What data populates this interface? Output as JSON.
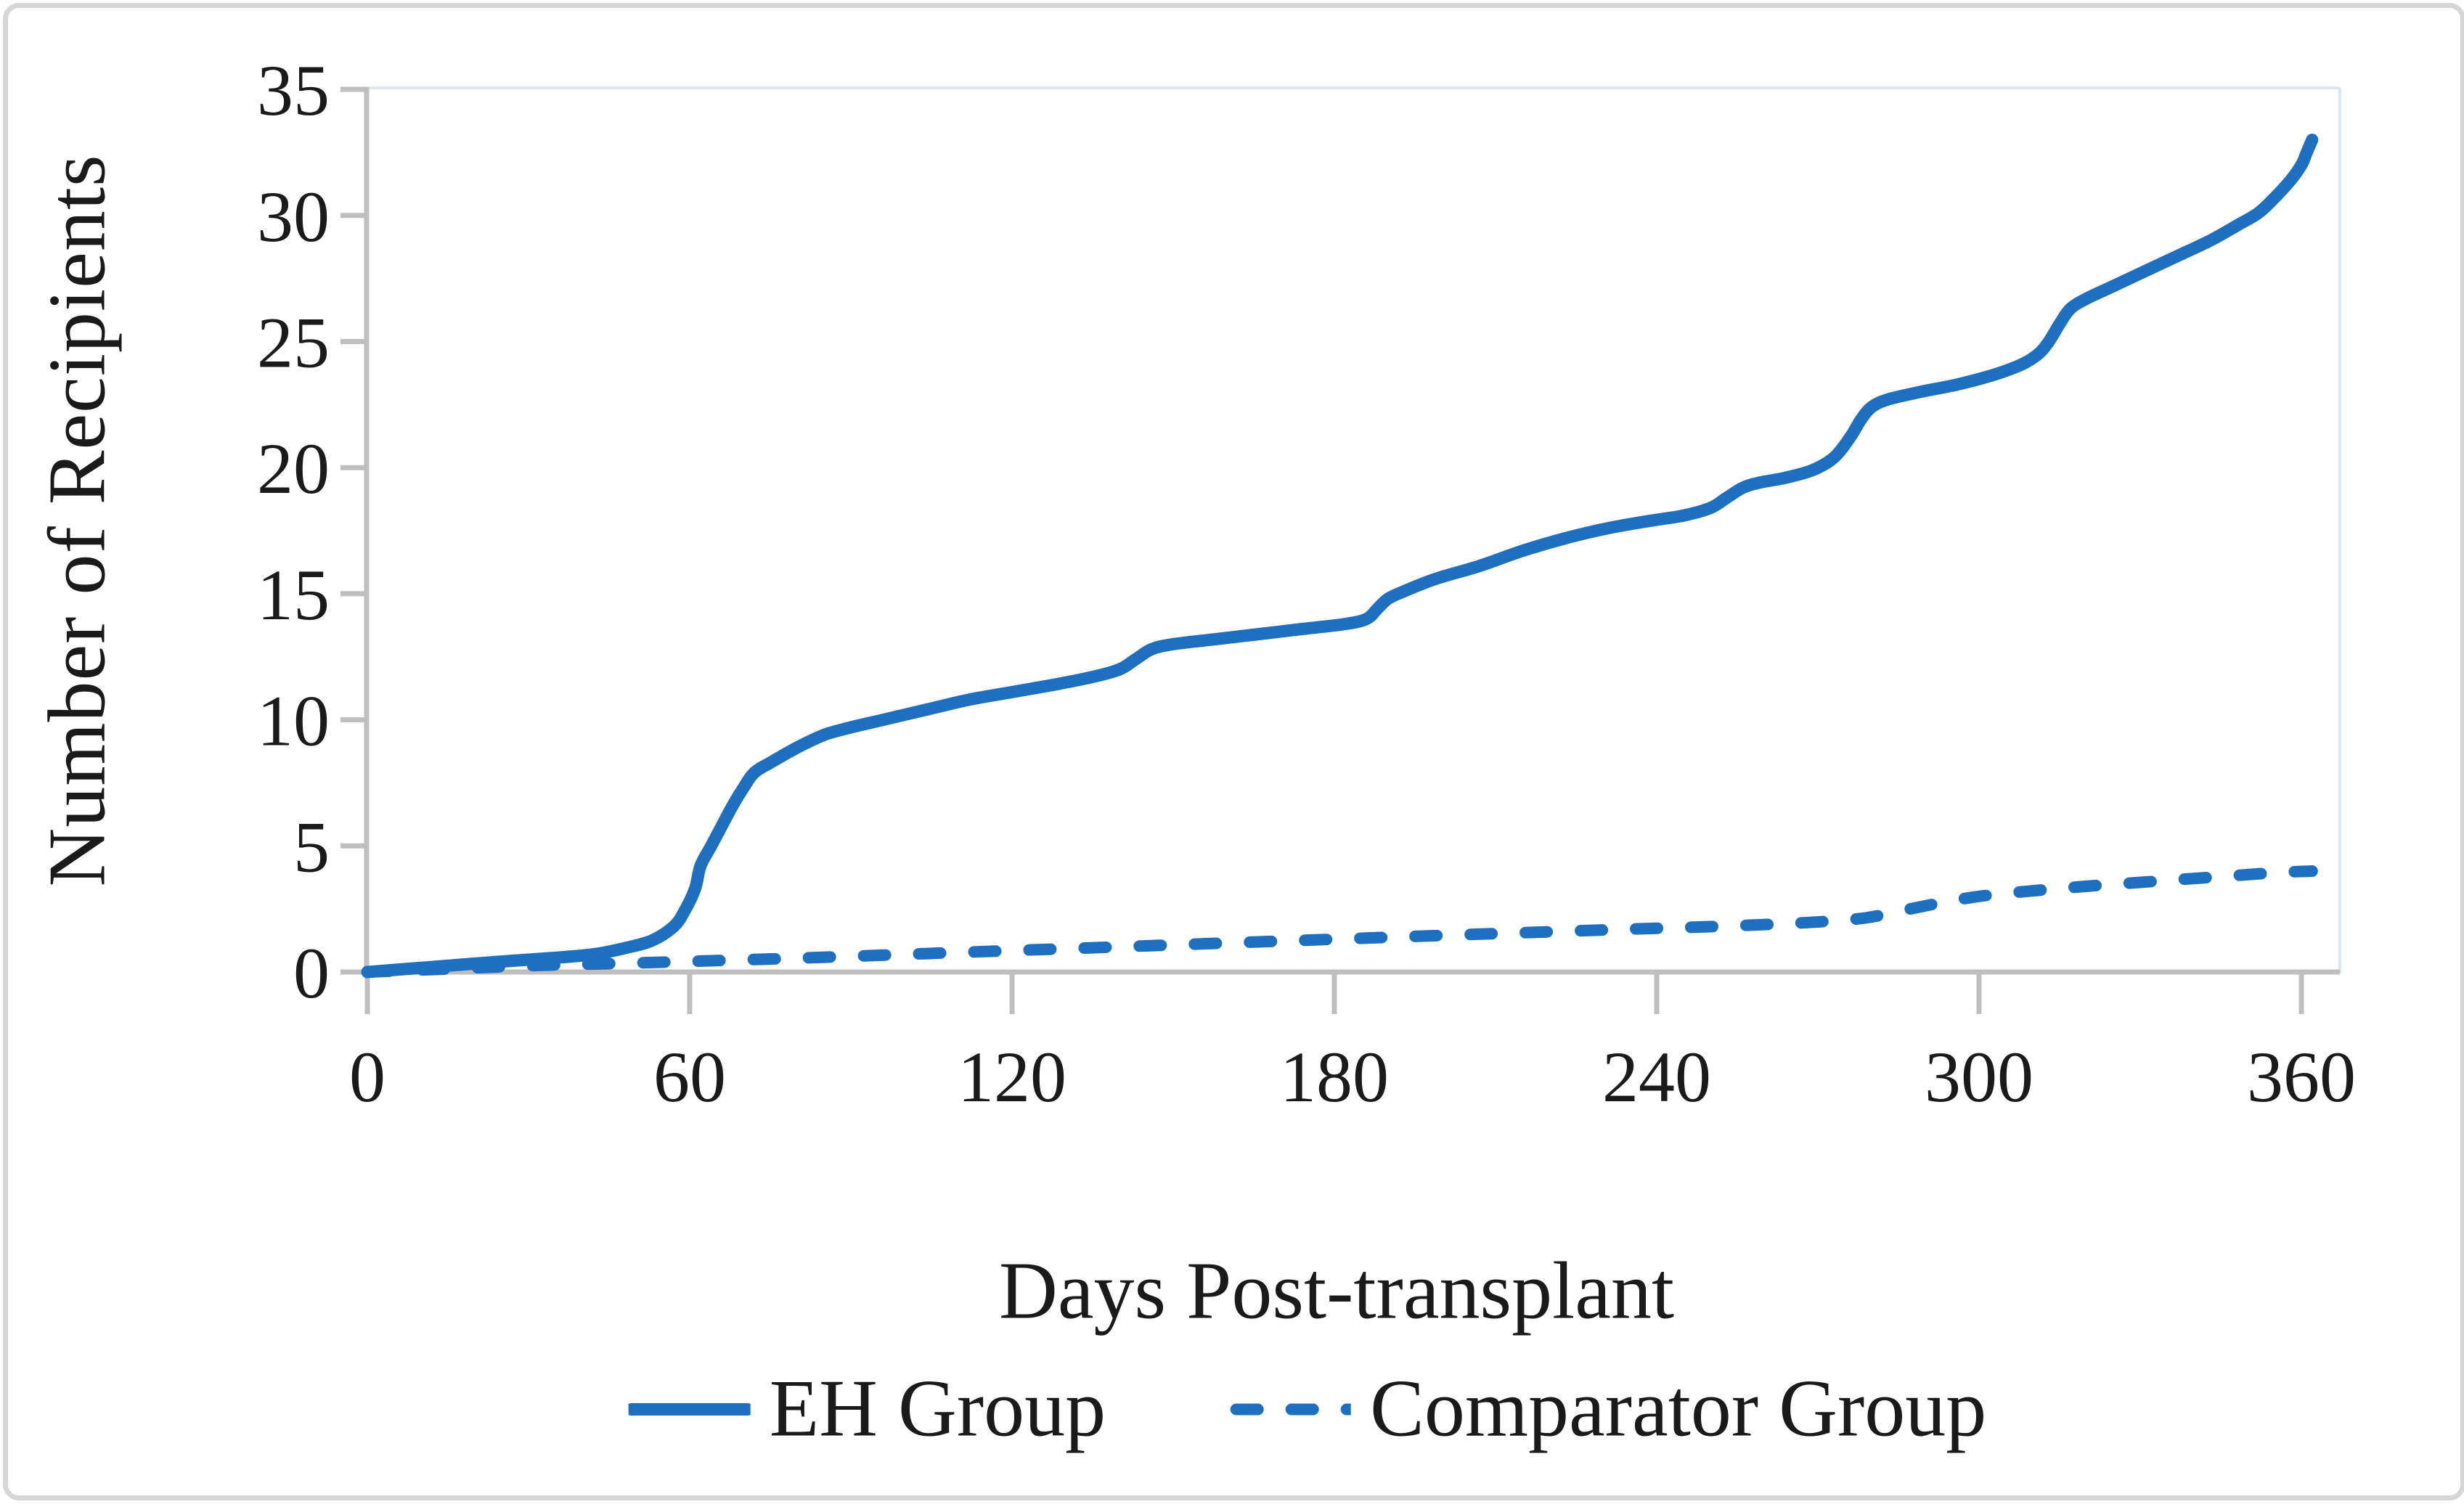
{
  "chart_data": {
    "type": "line",
    "title": "",
    "xlabel": "Days Post-transplant",
    "ylabel": "Number of Recipients",
    "xlim": [
      0,
      367
    ],
    "ylim": [
      0,
      35
    ],
    "x_ticks": [
      0,
      60,
      120,
      180,
      240,
      300,
      360
    ],
    "y_ticks": [
      0,
      5,
      10,
      15,
      20,
      25,
      30,
      35
    ],
    "grid": false,
    "legend_position": "bottom-center",
    "axis_color": "#bfbfbf",
    "plot_border_color": "#dce6f3",
    "text_color": "#1a1a1a",
    "frame_color": "#d6d6d6",
    "series": [
      {
        "name": "EH Group",
        "style": "solid",
        "color": "#1e6fc0",
        "points": [
          [
            0,
            0
          ],
          [
            12,
            0.2
          ],
          [
            24,
            0.4
          ],
          [
            34,
            0.55
          ],
          [
            42,
            0.7
          ],
          [
            48,
            0.95
          ],
          [
            53,
            1.25
          ],
          [
            57,
            1.8
          ],
          [
            59,
            2.4
          ],
          [
            61,
            3.3
          ],
          [
            62,
            4.2
          ],
          [
            64,
            5.0
          ],
          [
            66,
            5.8
          ],
          [
            68,
            6.6
          ],
          [
            70,
            7.3
          ],
          [
            72,
            7.9
          ],
          [
            75,
            8.3
          ],
          [
            80,
            8.9
          ],
          [
            85,
            9.4
          ],
          [
            90,
            9.7
          ],
          [
            96,
            10.0
          ],
          [
            104,
            10.4
          ],
          [
            112,
            10.8
          ],
          [
            120,
            11.1
          ],
          [
            128,
            11.4
          ],
          [
            135,
            11.7
          ],
          [
            140,
            12.0
          ],
          [
            143,
            12.4
          ],
          [
            146,
            12.8
          ],
          [
            150,
            13.0
          ],
          [
            158,
            13.2
          ],
          [
            166,
            13.4
          ],
          [
            174,
            13.6
          ],
          [
            182,
            13.8
          ],
          [
            186,
            14.0
          ],
          [
            188,
            14.4
          ],
          [
            190,
            14.8
          ],
          [
            193,
            15.1
          ],
          [
            199,
            15.6
          ],
          [
            207,
            16.1
          ],
          [
            215,
            16.7
          ],
          [
            223,
            17.2
          ],
          [
            231,
            17.6
          ],
          [
            239,
            17.9
          ],
          [
            245,
            18.1
          ],
          [
            250,
            18.4
          ],
          [
            253,
            18.8
          ],
          [
            256,
            19.2
          ],
          [
            259,
            19.4
          ],
          [
            264,
            19.6
          ],
          [
            269,
            19.9
          ],
          [
            273,
            20.4
          ],
          [
            276,
            21.2
          ],
          [
            278,
            21.9
          ],
          [
            280,
            22.4
          ],
          [
            283,
            22.7
          ],
          [
            289,
            23.0
          ],
          [
            296,
            23.3
          ],
          [
            303,
            23.7
          ],
          [
            308,
            24.1
          ],
          [
            311,
            24.5
          ],
          [
            313,
            25.0
          ],
          [
            315,
            25.7
          ],
          [
            317,
            26.3
          ],
          [
            320,
            26.7
          ],
          [
            325,
            27.2
          ],
          [
            331,
            27.8
          ],
          [
            337,
            28.4
          ],
          [
            343,
            29.0
          ],
          [
            348,
            29.6
          ],
          [
            352,
            30.1
          ],
          [
            355,
            30.7
          ],
          [
            358,
            31.4
          ],
          [
            360,
            32.0
          ],
          [
            361,
            32.5
          ],
          [
            362,
            33.0
          ]
        ]
      },
      {
        "name": "Comparator Group",
        "style": "dashed",
        "color": "#1e6fc0",
        "points": [
          [
            0,
            0
          ],
          [
            15,
            0.12
          ],
          [
            30,
            0.25
          ],
          [
            45,
            0.33
          ],
          [
            60,
            0.42
          ],
          [
            80,
            0.55
          ],
          [
            100,
            0.7
          ],
          [
            120,
            0.85
          ],
          [
            140,
            1.0
          ],
          [
            160,
            1.15
          ],
          [
            180,
            1.3
          ],
          [
            200,
            1.45
          ],
          [
            218,
            1.58
          ],
          [
            235,
            1.7
          ],
          [
            250,
            1.8
          ],
          [
            262,
            1.9
          ],
          [
            271,
            2.0
          ],
          [
            279,
            2.15
          ],
          [
            286,
            2.45
          ],
          [
            293,
            2.75
          ],
          [
            300,
            3.0
          ],
          [
            309,
            3.2
          ],
          [
            320,
            3.4
          ],
          [
            333,
            3.6
          ],
          [
            346,
            3.8
          ],
          [
            356,
            3.95
          ],
          [
            362,
            4.0
          ]
        ]
      }
    ]
  }
}
